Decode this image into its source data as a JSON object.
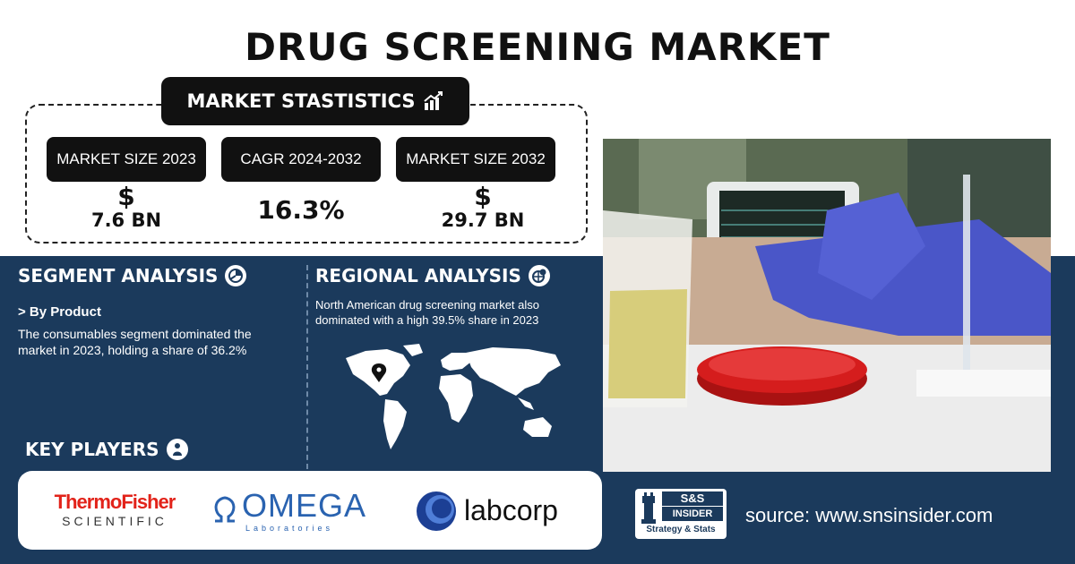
{
  "title": "DRUG SCREENING MARKET",
  "stats": {
    "header": "MARKET STASTISTICS",
    "items": [
      {
        "label": "MARKET SIZE 2023",
        "symbol": "$",
        "value": "7.6 BN"
      },
      {
        "label": "CAGR 2024-2032",
        "symbol": "",
        "value": "16.3%"
      },
      {
        "label": "MARKET SIZE 2032",
        "symbol": "$",
        "value": "29.7 BN"
      }
    ]
  },
  "segment": {
    "title": "SEGMENT ANALYSIS",
    "subhead": "> By Product",
    "text": "The consumables segment dominated the market in 2023, holding a share of 36.2%"
  },
  "regional": {
    "title": "REGIONAL ANALYSIS",
    "text": "North American drug screening market also dominated with a high 39.5% share in 2023"
  },
  "key_players": {
    "title": "KEY PLAYERS",
    "logos": [
      {
        "line1": "ThermoFisher",
        "line2": "SCIENTIFIC"
      },
      {
        "line1": "OMEGA",
        "line2": "Laboratories"
      },
      {
        "line1": "labcorp",
        "line2": ""
      }
    ]
  },
  "brand": {
    "top": "S&S",
    "middle": "INSIDER",
    "bottom": "Strategy & Stats"
  },
  "source": "source: www.snsinsider.com",
  "colors": {
    "navy": "#1b3a5c",
    "black": "#111111",
    "thermo_red": "#e2231a",
    "omega_blue": "#2a63b0",
    "labcorp_blue": "#1c3f94"
  }
}
